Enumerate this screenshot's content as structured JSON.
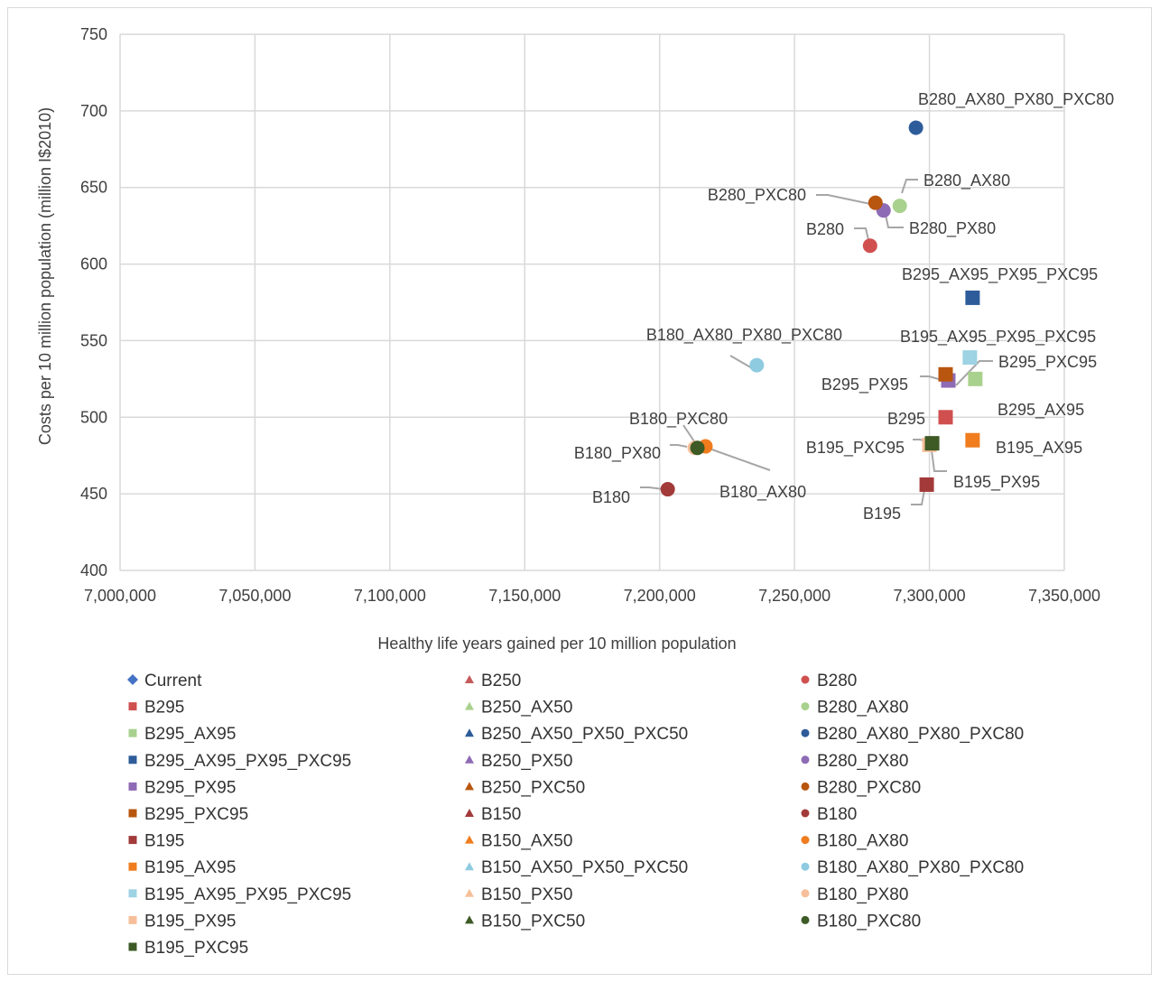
{
  "chart_data": {
    "type": "scatter",
    "title": "",
    "xlabel": "Healthy life years gained per 10 million population",
    "ylabel": "Costs per 10 million population  (million I$2010)",
    "xlim": [
      7000000,
      7350000
    ],
    "ylim": [
      400,
      750
    ],
    "x_ticks": [
      7000000,
      7050000,
      7100000,
      7150000,
      7200000,
      7250000,
      7300000,
      7350000
    ],
    "x_tick_labels": [
      "7,000,000",
      "7,050,000",
      "7,100,000",
      "7,150,000",
      "7,200,000",
      "7,250,000",
      "7,300,000",
      "7,350,000"
    ],
    "y_ticks": [
      400,
      450,
      500,
      550,
      600,
      650,
      700,
      750
    ],
    "y_tick_labels": [
      "400",
      "450",
      "500",
      "550",
      "600",
      "650",
      "700",
      "750"
    ],
    "grid": true,
    "legend_position": "bottom",
    "series": [
      {
        "name": "Current",
        "marker": "diamond",
        "color": "#4472c4",
        "x": null,
        "y": null,
        "label": ""
      },
      {
        "name": "B250",
        "marker": "triangle",
        "color": "#c55a5a",
        "x": null,
        "y": null,
        "label": ""
      },
      {
        "name": "B280",
        "marker": "circle",
        "color": "#d05050",
        "x": 7278000,
        "y": 612,
        "label": "B280"
      },
      {
        "name": "B295",
        "marker": "square",
        "color": "#d05050",
        "x": 7306000,
        "y": 500,
        "label": "B295"
      },
      {
        "name": "B250_AX50",
        "marker": "triangle",
        "color": "#a9d18e",
        "x": null,
        "y": null,
        "label": ""
      },
      {
        "name": "B280_AX80",
        "marker": "circle",
        "color": "#a9d18e",
        "x": 7289000,
        "y": 638,
        "label": "B280_AX80"
      },
      {
        "name": "B295_AX95",
        "marker": "square",
        "color": "#a9d18e",
        "x": 7317000,
        "y": 525,
        "label": "B295_AX95"
      },
      {
        "name": "B250_AX50_PX50_PXC50",
        "marker": "triangle",
        "color": "#2e5c9a",
        "x": null,
        "y": null,
        "label": ""
      },
      {
        "name": "B280_AX80_PX80_PXC80",
        "marker": "circle",
        "color": "#2e5c9a",
        "x": 7295000,
        "y": 689,
        "label": "B280_AX80_PX80_PXC80"
      },
      {
        "name": "B295_AX95_PX95_PXC95",
        "marker": "square",
        "color": "#2e5c9a",
        "x": 7316000,
        "y": 578,
        "label": "B295_AX95_PX95_PXC95"
      },
      {
        "name": "B250_PX50",
        "marker": "triangle",
        "color": "#8e6bb5",
        "x": null,
        "y": null,
        "label": ""
      },
      {
        "name": "B280_PX80",
        "marker": "circle",
        "color": "#8e6bb5",
        "x": 7283000,
        "y": 635,
        "label": "B280_PX80"
      },
      {
        "name": "B295_PX95",
        "marker": "square",
        "color": "#8e6bb5",
        "x": 7307000,
        "y": 524,
        "label": "B295_PX95"
      },
      {
        "name": "B250_PXC50",
        "marker": "triangle",
        "color": "#b8560f",
        "x": null,
        "y": null,
        "label": ""
      },
      {
        "name": "B280_PXC80",
        "marker": "circle",
        "color": "#b8560f",
        "x": 7280000,
        "y": 640,
        "label": "B280_PXC80"
      },
      {
        "name": "B295_PXC95",
        "marker": "square",
        "color": "#b8560f",
        "x": 7306000,
        "y": 528,
        "label": "B295_PXC95"
      },
      {
        "name": "B150",
        "marker": "triangle",
        "color": "#a33a3a",
        "x": null,
        "y": null,
        "label": ""
      },
      {
        "name": "B180",
        "marker": "circle",
        "color": "#a33a3a",
        "x": 7203000,
        "y": 453,
        "label": "B180"
      },
      {
        "name": "B195",
        "marker": "square",
        "color": "#a33a3a",
        "x": 7299000,
        "y": 456,
        "label": "B195"
      },
      {
        "name": "B150_AX50",
        "marker": "triangle",
        "color": "#f07c1e",
        "x": null,
        "y": null,
        "label": ""
      },
      {
        "name": "B180_AX80",
        "marker": "circle",
        "color": "#f07c1e",
        "x": 7217000,
        "y": 481,
        "label": "B180_AX80"
      },
      {
        "name": "B195_AX95",
        "marker": "square",
        "color": "#f07c1e",
        "x": 7316000,
        "y": 485,
        "label": "B195_AX95"
      },
      {
        "name": "B150_AX50_PX50_PXC50",
        "marker": "triangle",
        "color": "#8ecbe0",
        "x": null,
        "y": null,
        "label": ""
      },
      {
        "name": "B180_AX80_PX80_PXC80",
        "marker": "circle",
        "color": "#8ecbe0",
        "x": 7236000,
        "y": 534,
        "label": "B180_AX80_PX80_PXC80"
      },
      {
        "name": "B195_AX95_PX95_PXC95",
        "marker": "square",
        "color": "#9dd3e3",
        "x": 7315000,
        "y": 539,
        "label": "B195_AX95_PX95_PXC95"
      },
      {
        "name": "B150_PX50",
        "marker": "triangle",
        "color": "#f6bf9a",
        "x": null,
        "y": null,
        "label": ""
      },
      {
        "name": "B180_PX80",
        "marker": "circle",
        "color": "#f6bf9a",
        "x": 7213000,
        "y": 480,
        "label": "B180_PX80"
      },
      {
        "name": "B195_PX95",
        "marker": "square",
        "color": "#f6bf9a",
        "x": 7300000,
        "y": 482,
        "label": "B195_PX95"
      },
      {
        "name": "B150_PXC50",
        "marker": "triangle",
        "color": "#3e5a25",
        "x": null,
        "y": null,
        "label": ""
      },
      {
        "name": "B180_PXC80",
        "marker": "circle",
        "color": "#3e5a25",
        "x": 7214000,
        "y": 480,
        "label": "B180_PXC80"
      },
      {
        "name": "B195_PXC95",
        "marker": "square",
        "color": "#3e5a25",
        "x": 7301000,
        "y": 483,
        "label": "B195_PXC95"
      }
    ]
  }
}
